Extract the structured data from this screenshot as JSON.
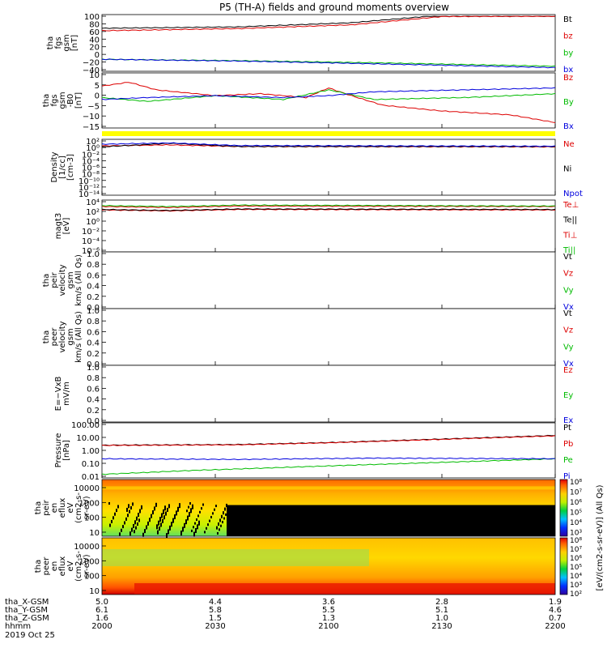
{
  "title": "P5 (TH-A) fields and ground moments overview",
  "bottom": {
    "row_labels": [
      "tha_X-GSM",
      "tha_Y-GSM",
      "tha_Z-GSM",
      "hhmm",
      "2019 Oct 25"
    ],
    "columns": [
      {
        "x": "5.0",
        "y": "6.1",
        "z": "1.6",
        "t": "2000"
      },
      {
        "x": "4.4",
        "y": "5.8",
        "z": "1.5",
        "t": "2030"
      },
      {
        "x": "3.6",
        "y": "5.5",
        "z": "1.3",
        "t": "2100"
      },
      {
        "x": "2.8",
        "y": "5.1",
        "z": "1.0",
        "t": "2130"
      },
      {
        "x": "1.9",
        "y": "4.6",
        "z": "0.7",
        "t": "2200"
      }
    ]
  },
  "colorbar": {
    "label": "[eV/(cm2-s-sr-eV)] (All Qs)",
    "top_ticks": [
      "10⁸",
      "10⁷",
      "10⁶",
      "10⁵",
      "10⁴",
      "10³"
    ],
    "bottom_ticks": [
      "10⁸",
      "10⁷",
      "10⁶",
      "10⁵",
      "10⁴",
      "10³",
      "10²"
    ]
  },
  "chart_data": [
    {
      "panel": "fgs-gsm-total",
      "type": "line",
      "ylabel": [
        "tha",
        "fgs",
        "gsm",
        "[nT]"
      ],
      "yticks": [
        "100",
        "80",
        "60",
        "40",
        "20",
        "0",
        "−20",
        "−40"
      ],
      "ylim": [
        -50,
        105
      ],
      "series": [
        {
          "name": "Bt",
          "color": "#000000",
          "x": [
            0,
            0.3,
            0.55,
            0.72,
            1
          ],
          "y": [
            70,
            74,
            86,
            105,
            105
          ]
        },
        {
          "name": "bz",
          "color": "#dd0000",
          "x": [
            0,
            0.3,
            0.55,
            0.75,
            1
          ],
          "y": [
            63,
            69,
            80,
            104,
            105
          ]
        },
        {
          "name": "by",
          "color": "#00bb00",
          "x": [
            0,
            0.3,
            0.6,
            1
          ],
          "y": [
            -20,
            -24,
            -30,
            -40
          ]
        },
        {
          "name": "bx",
          "color": "#0000dd",
          "x": [
            0,
            0.3,
            0.6,
            1
          ],
          "y": [
            -20,
            -25,
            -33,
            -44
          ]
        }
      ]
    },
    {
      "panel": "fgs-gsm-components",
      "type": "line",
      "ylabel": [
        "tha",
        "fgs",
        "gsm",
        "-B0",
        "[nT]"
      ],
      "yticks": [
        "10",
        "5",
        "0",
        "−5",
        "−10",
        "−15"
      ],
      "ylim": [
        -17,
        10
      ],
      "series": [
        {
          "name": "Bz",
          "color": "#dd0000",
          "x": [
            0,
            0.06,
            0.12,
            0.25,
            0.35,
            0.45,
            0.5,
            0.55,
            0.62,
            0.75,
            0.9,
            1
          ],
          "y": [
            4,
            6,
            2,
            -1,
            0,
            -2,
            3,
            -1,
            -6,
            -9,
            -11,
            -15
          ]
        },
        {
          "name": "By",
          "color": "#00bb00",
          "x": [
            0,
            0.1,
            0.25,
            0.4,
            0.5,
            0.6,
            0.8,
            1
          ],
          "y": [
            -2,
            -4,
            -1,
            -3,
            2,
            -3,
            -2,
            0
          ]
        },
        {
          "name": "Bx",
          "color": "#0000dd",
          "x": [
            0,
            0.1,
            0.25,
            0.4,
            0.5,
            0.6,
            0.8,
            1
          ],
          "y": [
            -3,
            -2,
            -1,
            -2,
            -1,
            1,
            2,
            3
          ]
        }
      ]
    },
    {
      "panel": "density",
      "type": "line",
      "log": true,
      "ylabel": [
        "Density",
        "[1/cc]",
        "[cm-3]"
      ],
      "yticks": [
        "10²",
        "10⁰",
        "10⁻²",
        "10⁻⁴",
        "10⁻⁶",
        "10⁻⁸",
        "10⁻¹⁰",
        "10⁻¹²",
        "10⁻¹⁴"
      ],
      "ylim": [
        -14,
        2
      ],
      "series": [
        {
          "name": "Ne",
          "color": "#dd0000",
          "x": [
            0,
            0.15,
            0.3,
            1
          ],
          "y": [
            0.5,
            0.8,
            0.3,
            0.2
          ]
        },
        {
          "name": "Ni",
          "color": "#000000",
          "x": [
            0,
            0.15,
            0.3,
            1
          ],
          "y": [
            0.2,
            1.3,
            0.3,
            0.3
          ]
        },
        {
          "name": "Npot",
          "color": "#0000dd",
          "x": [
            0,
            0.15,
            0.3,
            1
          ],
          "y": [
            1.0,
            1.4,
            0.6,
            0.4
          ]
        }
      ]
    },
    {
      "panel": "temperature",
      "type": "line",
      "log": true,
      "ylabel": [
        "magt3",
        "[eV]"
      ],
      "yticks": [
        "10⁴",
        "10²",
        "10⁰",
        "10⁻²",
        "10⁻⁴",
        "10⁻⁶"
      ],
      "ylim": [
        -6,
        4
      ],
      "series": [
        {
          "name": "Te⊥",
          "color": "#dd0000",
          "x": [
            0,
            0.15,
            0.3,
            1
          ],
          "y": [
            2.3,
            2.1,
            2.4,
            2.3
          ]
        },
        {
          "name": "Te||",
          "color": "#000000",
          "x": [
            0,
            0.15,
            0.3,
            1
          ],
          "y": [
            2.4,
            2.2,
            2.5,
            2.4
          ]
        },
        {
          "name": "Ti⊥",
          "color": "#dd0000",
          "x": [
            0,
            0.15,
            0.3,
            1
          ],
          "y": [
            3.0,
            2.8,
            3.1,
            3.0
          ]
        },
        {
          "name": "Ti||",
          "color": "#00bb00",
          "x": [
            0,
            0.15,
            0.3,
            1
          ],
          "y": [
            3.2,
            3.0,
            3.3,
            3.1
          ]
        }
      ]
    },
    {
      "panel": "peir-velocity",
      "type": "line",
      "ylabel": [
        "tha",
        "peir",
        "velocity",
        "gsm",
        "km/s (All Qs)"
      ],
      "yticks": [
        "1.0",
        "0.8",
        "0.6",
        "0.4",
        "0.2",
        "0.0"
      ],
      "ylim": [
        0,
        1
      ],
      "series": [
        {
          "name": "Vt",
          "color": "#000000",
          "x": [],
          "y": []
        },
        {
          "name": "Vz",
          "color": "#dd0000",
          "x": [],
          "y": []
        },
        {
          "name": "Vy",
          "color": "#00bb00",
          "x": [],
          "y": []
        },
        {
          "name": "Vx",
          "color": "#0000dd",
          "x": [],
          "y": []
        }
      ]
    },
    {
      "panel": "peer-velocity",
      "type": "line",
      "ylabel": [
        "tha",
        "peer",
        "velocity",
        "gsm",
        "km/s (All Qs)"
      ],
      "yticks": [
        "1.0",
        "0.8",
        "0.6",
        "0.4",
        "0.2",
        "0.0"
      ],
      "ylim": [
        0,
        1
      ],
      "series": [
        {
          "name": "Vt",
          "color": "#000000",
          "x": [],
          "y": []
        },
        {
          "name": "Vz",
          "color": "#dd0000",
          "x": [],
          "y": []
        },
        {
          "name": "Vy",
          "color": "#00bb00",
          "x": [],
          "y": []
        },
        {
          "name": "Vx",
          "color": "#0000dd",
          "x": [],
          "y": []
        }
      ]
    },
    {
      "panel": "efield",
      "type": "line",
      "ylabel": [
        "E=−VxB",
        "mV/m"
      ],
      "yticks": [
        "1.0",
        "0.8",
        "0.6",
        "0.4",
        "0.2",
        "0.0"
      ],
      "ylim": [
        0,
        1
      ],
      "series": [
        {
          "name": "Ez",
          "color": "#dd0000",
          "x": [],
          "y": []
        },
        {
          "name": "Ey",
          "color": "#00bb00",
          "x": [],
          "y": []
        },
        {
          "name": "Ex",
          "color": "#0000dd",
          "x": [],
          "y": []
        }
      ]
    },
    {
      "panel": "pressure",
      "type": "line",
      "log": true,
      "ylabel": [
        "Pressure",
        "[nPa]"
      ],
      "yticks": [
        "100.00",
        "10.00",
        "1.00",
        "0.10",
        "0.01"
      ],
      "ylim": [
        -2,
        2
      ],
      "series": [
        {
          "name": "Pt",
          "color": "#000000",
          "x": [
            0,
            0.3,
            0.5,
            1
          ],
          "y": [
            0.4,
            0.45,
            0.6,
            1.15
          ]
        },
        {
          "name": "Pb",
          "color": "#dd0000",
          "x": [
            0,
            0.3,
            0.5,
            1
          ],
          "y": [
            0.38,
            0.43,
            0.58,
            1.12
          ]
        },
        {
          "name": "Pe",
          "color": "#00bb00",
          "x": [
            0,
            0.2,
            0.5,
            1
          ],
          "y": [
            -1.85,
            -1.55,
            -1.2,
            -0.65
          ]
        },
        {
          "name": "Pi",
          "color": "#0000dd",
          "x": [
            0,
            0.3,
            0.6,
            1
          ],
          "y": [
            -0.65,
            -0.7,
            -0.6,
            -0.65
          ]
        }
      ]
    },
    {
      "panel": "peir-eflux",
      "type": "heatmap",
      "ylabel": [
        "tha",
        "peir",
        "en",
        "eflux",
        "eV",
        "(cm2-s-",
        "sr-eV)"
      ],
      "yticks": [
        "10000",
        "1000",
        "100",
        "10"
      ]
    },
    {
      "panel": "peer-eflux",
      "type": "heatmap",
      "ylabel": [
        "tha",
        "peer",
        "en",
        "eflux",
        "eV",
        "(cm2-s-",
        "sr-eV)"
      ],
      "yticks": [
        "10000",
        "1000",
        "100",
        "10"
      ]
    }
  ]
}
